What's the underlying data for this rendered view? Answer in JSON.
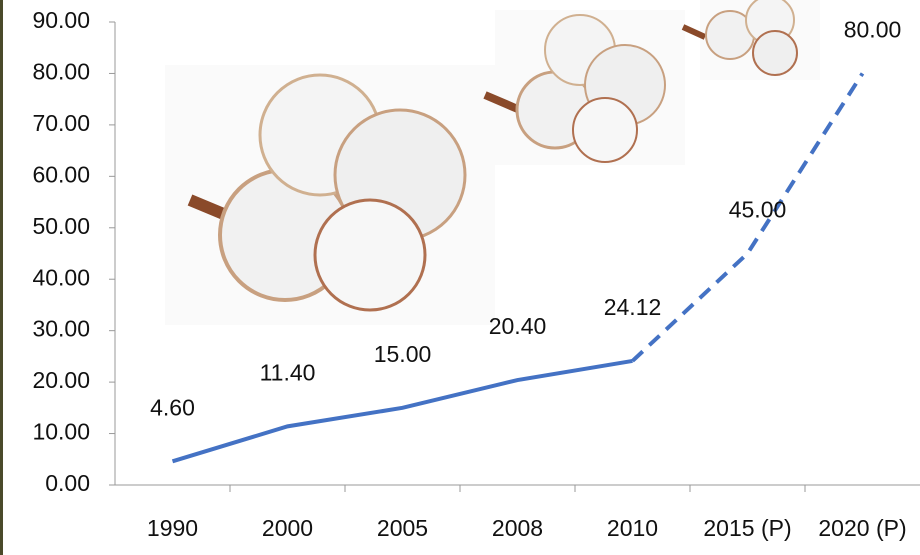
{
  "chart_data": {
    "type": "line",
    "categories": [
      "1990",
      "2000",
      "2005",
      "2008",
      "2010",
      "2015 (P)",
      "2020 (P)"
    ],
    "series": [
      {
        "color": "#4472c4",
        "line_style": "solid",
        "values": [
          4.6,
          11.4,
          15,
          20.4,
          24.12,
          null,
          null
        ],
        "value_labels": [
          "4.60",
          "11.40",
          "15.00",
          "20.40",
          "24.12",
          null,
          null
        ]
      },
      {
        "color": "#4472c4",
        "line_style": "dashed",
        "values": [
          null,
          null,
          null,
          null,
          24.12,
          45,
          80
        ],
        "value_labels": [
          null,
          null,
          null,
          null,
          null,
          "45.00",
          "80.00"
        ]
      }
    ],
    "ylim": [
      0,
      90
    ],
    "yticks": [
      {
        "value": 0,
        "label": "0.00"
      },
      {
        "value": 10,
        "label": "10.00"
      },
      {
        "value": 20,
        "label": "20.00"
      },
      {
        "value": 30,
        "label": "30.00"
      },
      {
        "value": 40,
        "label": "40.00"
      },
      {
        "value": 50,
        "label": "50.00"
      },
      {
        "value": 60,
        "label": "60.00"
      },
      {
        "value": 70,
        "label": "70.00"
      },
      {
        "value": 80,
        "label": "80.00"
      },
      {
        "value": 90,
        "label": "90.00"
      }
    ],
    "grid": false
  }
}
